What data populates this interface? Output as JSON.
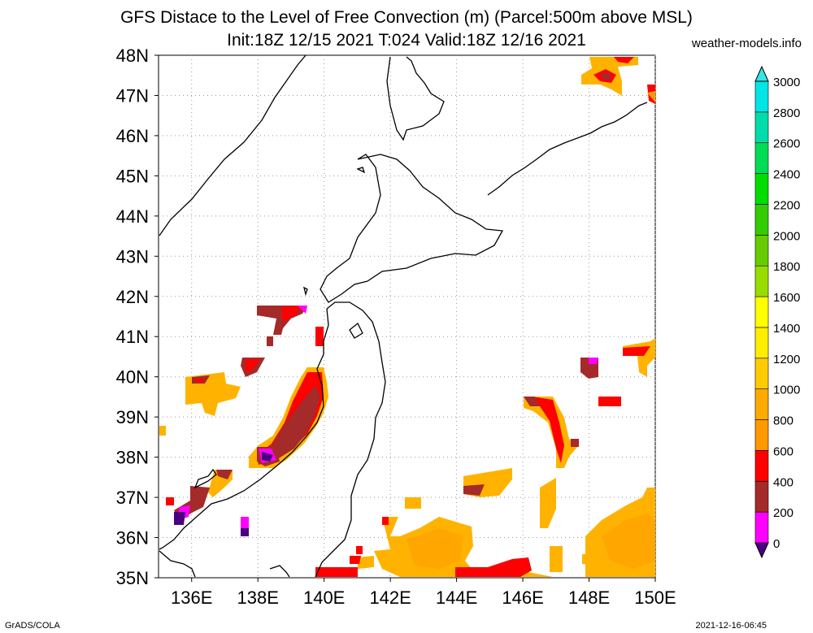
{
  "header": {
    "title_line1": "GFS Distace to the Level of Free Convection (m) (Parcel:500m above MSL)",
    "title_line2": "Init:18Z 12/15 2021 T:024 Valid:18Z 12/16 2021",
    "site": "weather-models.info"
  },
  "map": {
    "lat_labels": [
      "48N",
      "47N",
      "46N",
      "45N",
      "44N",
      "43N",
      "42N",
      "41N",
      "40N",
      "39N",
      "38N",
      "37N",
      "36N",
      "35N"
    ],
    "lon_labels": [
      "136E",
      "138E",
      "140E",
      "142E",
      "144E",
      "146E",
      "148E",
      "150E"
    ],
    "lon_range": [
      135,
      150
    ],
    "lat_range": [
      35,
      48
    ],
    "field": "distance to LFC",
    "units": "m"
  },
  "colorbar": {
    "levels": [
      0,
      200,
      400,
      600,
      800,
      1000,
      1200,
      1400,
      1600,
      1800,
      2000,
      2200,
      2400,
      2600,
      2800,
      3000
    ],
    "labels": [
      "3000",
      "2800",
      "2600",
      "2400",
      "2200",
      "2000",
      "1800",
      "1600",
      "1400",
      "1200",
      "1000",
      "800",
      "600",
      "400",
      "200",
      "0"
    ],
    "colors": [
      "#4b0082",
      "#ff00ff",
      "#a52a2a",
      "#ff0000",
      "#ff9900",
      "#ffaa00",
      "#ffcc00",
      "#ffee00",
      "#ffff00",
      "#99dd00",
      "#66cc00",
      "#33cc00",
      "#00dd00",
      "#00dd55",
      "#00ddaa",
      "#00e5e5",
      "#33e5e5"
    ]
  },
  "footer": {
    "left": "GrADS/COLA",
    "right": "2021-12-16-06:45"
  }
}
